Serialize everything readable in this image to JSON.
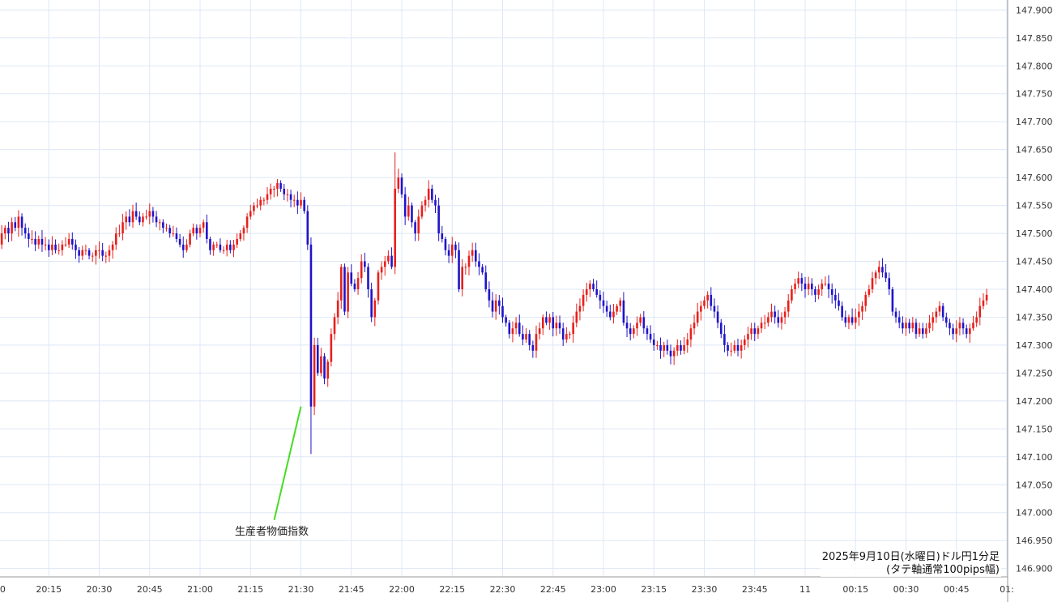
{
  "chart_data": {
    "type": "candlestick",
    "annotation": {
      "label": "生産者物価指数",
      "time": "21:30",
      "price": 147.19,
      "color": "#44dd22"
    },
    "caption_line1": "2025年9月10日(水曜日)ドル円1分足",
    "caption_line2": "(タテ軸通常100pips幅)",
    "y_axis": {
      "ylim": [
        146.885,
        147.915
      ],
      "ticks": [
        "147.900",
        "147.850",
        "147.800",
        "147.750",
        "147.700",
        "147.650",
        "147.600",
        "147.550",
        "147.500",
        "147.450",
        "147.400",
        "147.350",
        "147.300",
        "147.250",
        "147.200",
        "147.150",
        "147.100",
        "147.050",
        "147.000",
        "146.950",
        "146.900"
      ]
    },
    "x_axis": {
      "ticks": [
        {
          "label": ":00",
          "time": "20:00"
        },
        {
          "label": "20:15",
          "time": "20:15"
        },
        {
          "label": "20:30",
          "time": "20:30"
        },
        {
          "label": "20:45",
          "time": "20:45"
        },
        {
          "label": "21:00",
          "time": "21:00"
        },
        {
          "label": "21:15",
          "time": "21:15"
        },
        {
          "label": "21:30",
          "time": "21:30"
        },
        {
          "label": "21:45",
          "time": "21:45"
        },
        {
          "label": "22:00",
          "time": "22:00"
        },
        {
          "label": "22:15",
          "time": "22:15"
        },
        {
          "label": "22:30",
          "time": "22:30"
        },
        {
          "label": "22:45",
          "time": "22:45"
        },
        {
          "label": "23:00",
          "time": "23:00"
        },
        {
          "label": "23:15",
          "time": "23:15"
        },
        {
          "label": "23:30",
          "time": "23:30"
        },
        {
          "label": "23:45",
          "time": "23:45"
        },
        {
          "label": "11",
          "time": "00:00"
        },
        {
          "label": "00:15",
          "time": "00:15"
        },
        {
          "label": "00:30",
          "time": "00:30"
        },
        {
          "label": "00:45",
          "time": "00:45"
        },
        {
          "label": "01:",
          "time": "01:00"
        }
      ]
    },
    "grid": true,
    "colors": {
      "up": "#e8201c",
      "down": "#1f14c8",
      "grid": "#dde8f5",
      "axis": "#9a9a9a"
    },
    "close_series_start": "20:00",
    "close_series_interval_minutes": 1,
    "close_series": [
      147.48,
      147.5,
      147.51,
      147.5,
      147.52,
      147.51,
      147.53,
      147.51,
      147.5,
      147.49,
      147.49,
      147.48,
      147.49,
      147.48,
      147.48,
      147.47,
      147.48,
      147.47,
      147.47,
      147.48,
      147.48,
      147.49,
      147.48,
      147.47,
      147.46,
      147.47,
      147.47,
      147.46,
      147.46,
      147.47,
      147.47,
      147.46,
      147.46,
      147.47,
      147.48,
      147.5,
      147.5,
      147.52,
      147.53,
      147.52,
      147.54,
      147.53,
      147.52,
      147.53,
      147.53,
      147.54,
      147.53,
      147.52,
      147.52,
      147.51,
      147.51,
      147.5,
      147.5,
      147.49,
      147.48,
      147.47,
      147.48,
      147.5,
      147.51,
      147.5,
      147.51,
      147.52,
      147.49,
      147.47,
      147.48,
      147.48,
      147.47,
      147.47,
      147.48,
      147.47,
      147.48,
      147.49,
      147.5,
      147.51,
      147.53,
      147.54,
      147.55,
      147.55,
      147.56,
      147.56,
      147.57,
      147.58,
      147.58,
      147.59,
      147.58,
      147.57,
      147.57,
      147.56,
      147.56,
      147.55,
      147.56,
      147.54,
      147.48,
      147.19,
      147.3,
      147.25,
      147.28,
      147.24,
      147.27,
      147.32,
      147.35,
      147.38,
      147.44,
      147.36,
      147.43,
      147.41,
      147.4,
      147.42,
      147.45,
      147.44,
      147.4,
      147.35,
      147.38,
      147.43,
      147.44,
      147.45,
      147.46,
      147.44,
      147.58,
      147.6,
      147.57,
      147.53,
      147.55,
      147.52,
      147.5,
      147.53,
      147.55,
      147.56,
      147.58,
      147.56,
      147.55,
      147.5,
      147.49,
      147.47,
      147.46,
      147.48,
      147.47,
      147.4,
      147.44,
      147.44,
      147.46,
      147.47,
      147.45,
      147.44,
      147.43,
      147.4,
      147.38,
      147.36,
      147.38,
      147.37,
      147.35,
      147.34,
      147.32,
      147.33,
      147.34,
      147.32,
      147.31,
      147.32,
      147.3,
      147.29,
      147.32,
      147.33,
      147.35,
      147.34,
      147.35,
      147.33,
      147.34,
      147.33,
      147.31,
      147.32,
      147.32,
      147.34,
      147.36,
      147.37,
      147.39,
      147.4,
      147.41,
      147.4,
      147.39,
      147.38,
      147.37,
      147.36,
      147.35,
      147.36,
      147.37,
      147.38,
      147.34,
      147.33,
      147.32,
      147.33,
      147.34,
      147.35,
      147.33,
      147.32,
      147.31,
      147.3,
      147.3,
      147.29,
      147.3,
      147.29,
      147.28,
      147.29,
      147.3,
      147.29,
      147.3,
      147.31,
      147.33,
      147.34,
      147.36,
      147.37,
      147.38,
      147.39,
      147.37,
      147.36,
      147.34,
      147.32,
      147.3,
      147.29,
      147.29,
      147.3,
      147.29,
      147.3,
      147.31,
      147.32,
      147.33,
      147.32,
      147.33,
      147.34,
      147.34,
      147.35,
      147.36,
      147.35,
      147.34,
      147.35,
      147.36,
      147.38,
      147.4,
      147.41,
      147.42,
      147.41,
      147.4,
      147.41,
      147.4,
      147.39,
      147.4,
      147.41,
      147.41,
      147.4,
      147.39,
      147.38,
      147.37,
      147.35,
      147.34,
      147.35,
      147.34,
      147.35,
      147.36,
      147.37,
      147.39,
      147.4,
      147.42,
      147.43,
      147.44,
      147.43,
      147.42,
      147.4,
      147.36,
      147.35,
      147.34,
      147.33,
      147.34,
      147.33,
      147.34,
      147.32,
      147.33,
      147.32,
      147.33,
      147.34,
      147.35,
      147.36,
      147.37,
      147.35,
      147.34,
      147.33,
      147.32,
      147.33,
      147.34,
      147.33,
      147.32,
      147.33,
      147.34,
      147.35,
      147.37,
      147.38,
      147.39
    ]
  }
}
